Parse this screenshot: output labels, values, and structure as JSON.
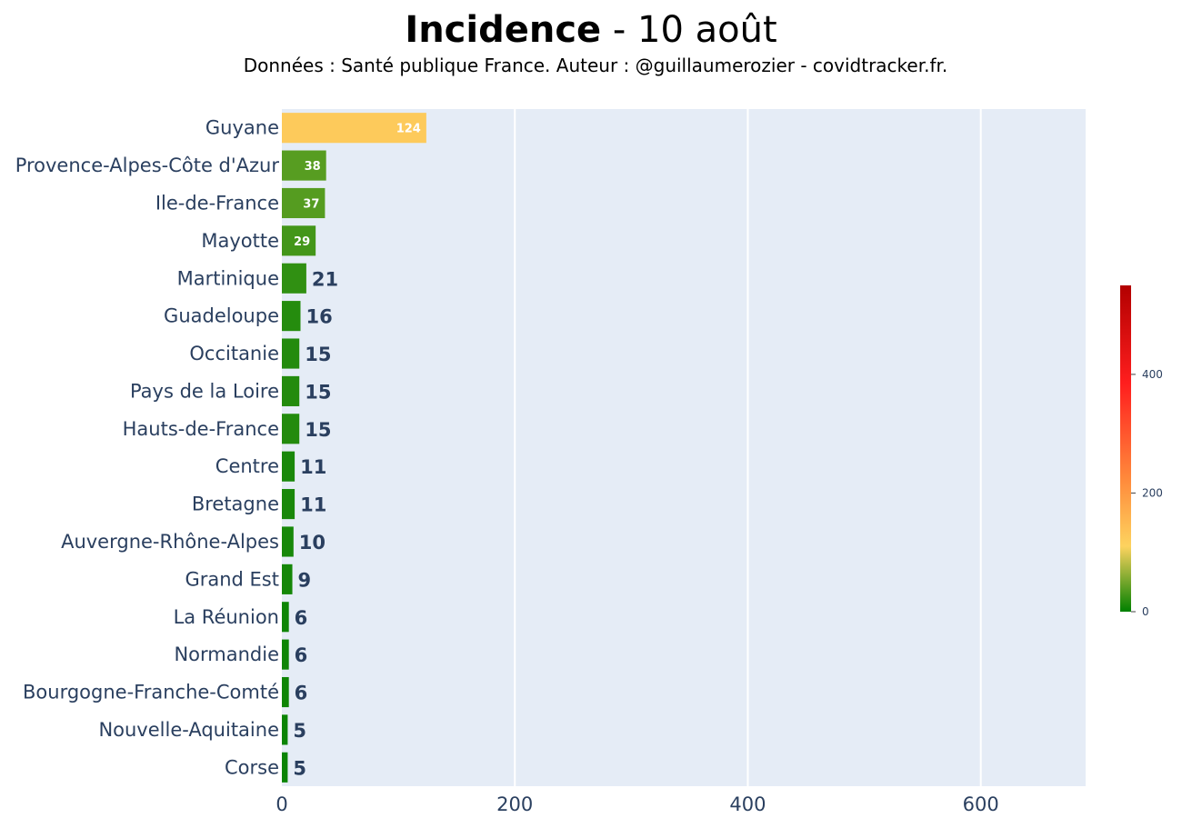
{
  "chart_data": {
    "type": "bar",
    "orientation": "horizontal",
    "title": {
      "bold": "Incidence",
      "rest": " - 10 août"
    },
    "subtitle": "Données : Santé publique France. Auteur : @guillaumerozier - covidtracker.fr.",
    "categories": [
      "Guyane",
      "Provence-Alpes-Côte d'Azur",
      "Ile-de-France",
      "Mayotte",
      "Martinique",
      "Guadeloupe",
      "Occitanie",
      "Pays de la Loire",
      "Hauts-de-France",
      "Centre",
      "Bretagne",
      "Auvergne-Rhône-Alpes",
      "Grand Est",
      "La Réunion",
      "Normandie",
      "Bourgogne-Franche-Comté",
      "Nouvelle-Aquitaine",
      "Corse"
    ],
    "values": [
      124,
      38,
      37,
      29,
      21,
      16,
      15,
      15,
      15,
      11,
      11,
      10,
      9,
      6,
      6,
      6,
      5,
      5
    ],
    "xlim": [
      0,
      690
    ],
    "x_ticks": [
      0,
      200,
      400,
      600
    ],
    "grid": true,
    "colorscale": {
      "range": [
        0,
        550
      ],
      "ticks": [
        0,
        200,
        400
      ],
      "stops": [
        [
          0.0,
          "#008000"
        ],
        [
          0.2,
          "#fdd35f"
        ],
        [
          0.4,
          "#ff8c3c"
        ],
        [
          0.7,
          "#ff1e1e"
        ],
        [
          1.0,
          "#b20000"
        ]
      ]
    },
    "colors": {
      "plot_bg": "#e5ecf6",
      "grid": "#ffffff",
      "text": "#2a3f5f",
      "inside_label": "#ffffff"
    }
  }
}
